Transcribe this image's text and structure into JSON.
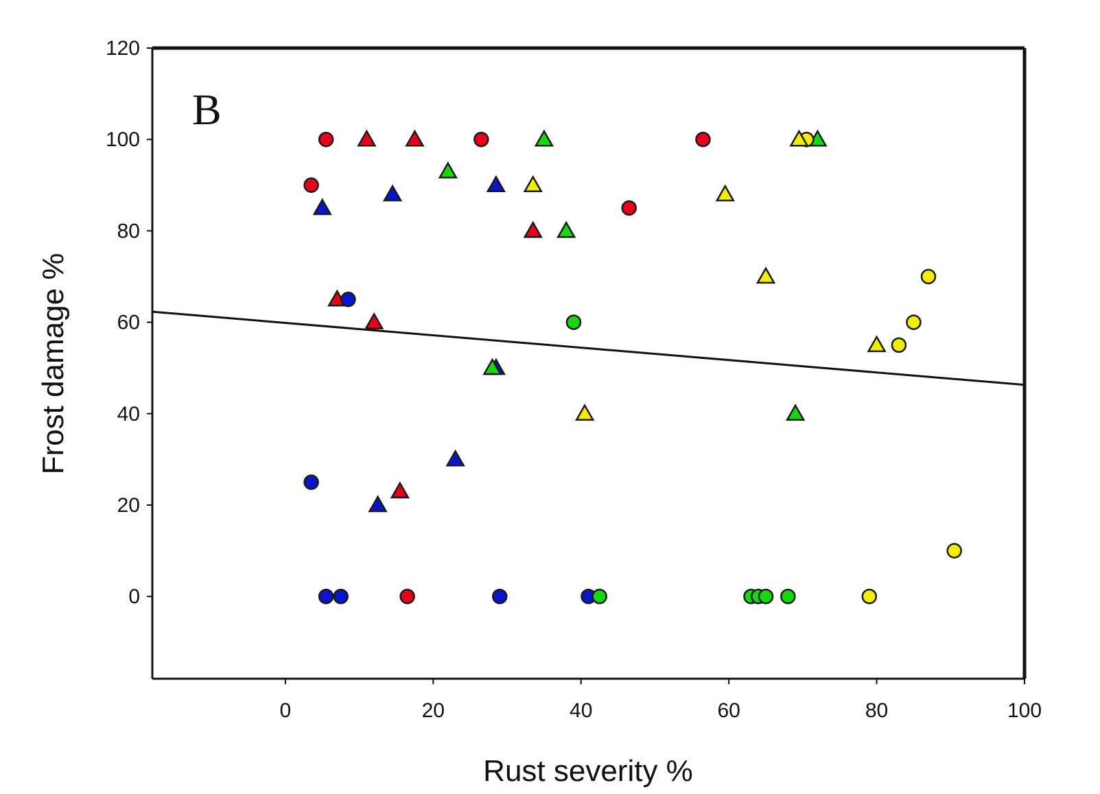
{
  "chart_data": {
    "type": "scatter",
    "panel_label": "B",
    "xlabel": "Rust severity %",
    "ylabel": "Frost damage %",
    "xlim": [
      -18,
      100
    ],
    "ylim": [
      -18,
      120
    ],
    "xticks": [
      0,
      20,
      40,
      60,
      80,
      100
    ],
    "yticks": [
      0,
      20,
      40,
      60,
      80,
      100,
      120
    ],
    "xtick_labels": [
      "0",
      "20",
      "40",
      "60",
      "80",
      "100"
    ],
    "ytick_labels": [
      "0",
      "20",
      "40",
      "60",
      "80",
      "100",
      "120"
    ],
    "grid": false,
    "colors": {
      "red": "#e8001c",
      "blue": "#0a14c8",
      "green": "#16d80e",
      "yellow": "#f2ee00",
      "line": "#111111",
      "frame": "#111111",
      "marker_edge": "#1a1a1a"
    },
    "series": [
      {
        "color": "red",
        "marker": "circle",
        "points": [
          [
            5.5,
            100
          ],
          [
            3.5,
            90
          ],
          [
            26.5,
            100
          ],
          [
            56.5,
            100
          ],
          [
            46.5,
            85
          ],
          [
            16.5,
            0
          ]
        ]
      },
      {
        "color": "red",
        "marker": "triangle",
        "points": [
          [
            11,
            100
          ],
          [
            17.5,
            100
          ],
          [
            33.5,
            80
          ],
          [
            7,
            65
          ],
          [
            12,
            60
          ],
          [
            15.5,
            23
          ]
        ]
      },
      {
        "color": "blue",
        "marker": "circle",
        "points": [
          [
            8.5,
            65
          ],
          [
            3.5,
            25
          ],
          [
            5.5,
            0
          ],
          [
            7.5,
            0
          ],
          [
            29,
            0
          ],
          [
            41,
            0
          ]
        ]
      },
      {
        "color": "blue",
        "marker": "triangle",
        "points": [
          [
            5,
            85
          ],
          [
            14.5,
            88
          ],
          [
            28.5,
            90
          ],
          [
            28.5,
            50
          ],
          [
            23,
            30
          ],
          [
            12.5,
            20
          ]
        ]
      },
      {
        "color": "green",
        "marker": "circle",
        "points": [
          [
            39,
            60
          ],
          [
            42.5,
            0
          ],
          [
            63,
            0
          ],
          [
            64,
            0
          ],
          [
            65,
            0
          ],
          [
            68,
            0
          ]
        ]
      },
      {
        "color": "green",
        "marker": "triangle",
        "points": [
          [
            35,
            100
          ],
          [
            22,
            93
          ],
          [
            38,
            80
          ],
          [
            72,
            100
          ],
          [
            69,
            40
          ],
          [
            28,
            50
          ]
        ]
      },
      {
        "color": "yellow",
        "marker": "circle",
        "points": [
          [
            70.5,
            100
          ],
          [
            87,
            70
          ],
          [
            85,
            60
          ],
          [
            83,
            55
          ],
          [
            90.5,
            10
          ],
          [
            79,
            0
          ]
        ]
      },
      {
        "color": "yellow",
        "marker": "triangle",
        "points": [
          [
            69.5,
            100
          ],
          [
            33.5,
            90
          ],
          [
            59.5,
            88
          ],
          [
            65,
            70
          ],
          [
            80,
            55
          ],
          [
            40.5,
            40
          ]
        ]
      }
    ],
    "fit_line": {
      "x": [
        -18,
        100
      ],
      "y": [
        62.3,
        46.3
      ]
    }
  }
}
